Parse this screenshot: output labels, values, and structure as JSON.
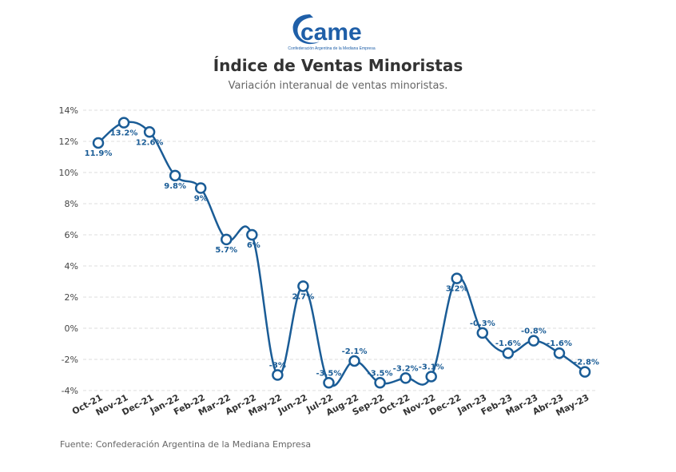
{
  "logo": {
    "text": "came",
    "subtitle": "Confederación Argentina de la Mediana Empresa",
    "color": "#1f5fa8"
  },
  "title": "Índice de Ventas Minoristas",
  "subtitle": "Variación interanual de ventas minoristas.",
  "source": "Fuente: Confederación Argentina de la Mediana Empresa",
  "chart_data": {
    "type": "line",
    "categories": [
      "Oct-21",
      "Nov-21",
      "Dec-21",
      "Jan-22",
      "Feb-22",
      "Mar-22",
      "Apr-22",
      "May-22",
      "Jun-22",
      "Jul-22",
      "Aug-22",
      "Sep-22",
      "Oct-22",
      "Nov-22",
      "Dec-22",
      "Jan-23",
      "Feb-23",
      "Mar-23",
      "Abr-23",
      "May-23"
    ],
    "values": [
      11.9,
      13.2,
      12.6,
      9.8,
      9,
      5.7,
      6,
      -3,
      2.7,
      -3.5,
      -2.1,
      -3.5,
      -3.2,
      -3.1,
      3.2,
      -0.3,
      -1.6,
      -0.8,
      -1.6,
      -2.8
    ],
    "data_labels": [
      "11.9%",
      "13.2%",
      "12.6%",
      "9.8%",
      "9%",
      "5.7%",
      "6%",
      "-3%",
      "2.7%",
      "-3.5%",
      "-2.1%",
      "-3.5%",
      "-3.2%",
      "-3.1%",
      "3.2%",
      "-0.3%",
      "-1.6%",
      "-0.8%",
      "-1.6%",
      "-2.8%"
    ],
    "yticks": [
      14,
      12,
      10,
      8,
      6,
      4,
      2,
      0,
      -2,
      -4
    ],
    "ytick_labels": [
      "14%",
      "12%",
      "10%",
      "8%",
      "6%",
      "4%",
      "2%",
      "0%",
      "-2%",
      "-4%"
    ],
    "ylim": [
      -4,
      14
    ],
    "grid": true,
    "line_color": "#1a5c96",
    "title": "Índice de Ventas Minoristas",
    "xlabel": "",
    "ylabel": ""
  }
}
